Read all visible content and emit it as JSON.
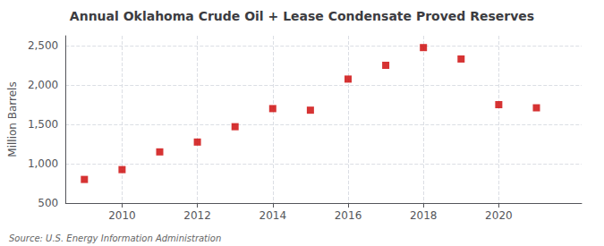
{
  "chart_data": {
    "type": "scatter",
    "title": "Annual Oklahoma Crude Oil + Lease Condensate Proved Reserves",
    "ylabel": "Million Barrels",
    "annotations": [
      "Source: U.S. Energy Information Administration"
    ],
    "x": [
      2009,
      2010,
      2011,
      2012,
      2013,
      2014,
      2015,
      2016,
      2017,
      2018,
      2019,
      2020,
      2021
    ],
    "values": [
      800,
      925,
      1150,
      1275,
      1470,
      1700,
      1680,
      2075,
      2250,
      2475,
      2330,
      1750,
      1710
    ],
    "color": "#cc0000",
    "marker": "square",
    "xlim": [
      2008.5,
      2022.2
    ],
    "xticks": [
      2010,
      2012,
      2014,
      2016,
      2018,
      2020
    ],
    "ylim": [
      500,
      2625
    ],
    "yticks": [
      500,
      {
        "value": 1000,
        "label": "1,000"
      },
      {
        "value": 1500,
        "label": "1,500"
      },
      {
        "value": 2000,
        "label": "2,000"
      },
      {
        "value": 2500,
        "label": "2,500"
      }
    ],
    "grid": true
  }
}
